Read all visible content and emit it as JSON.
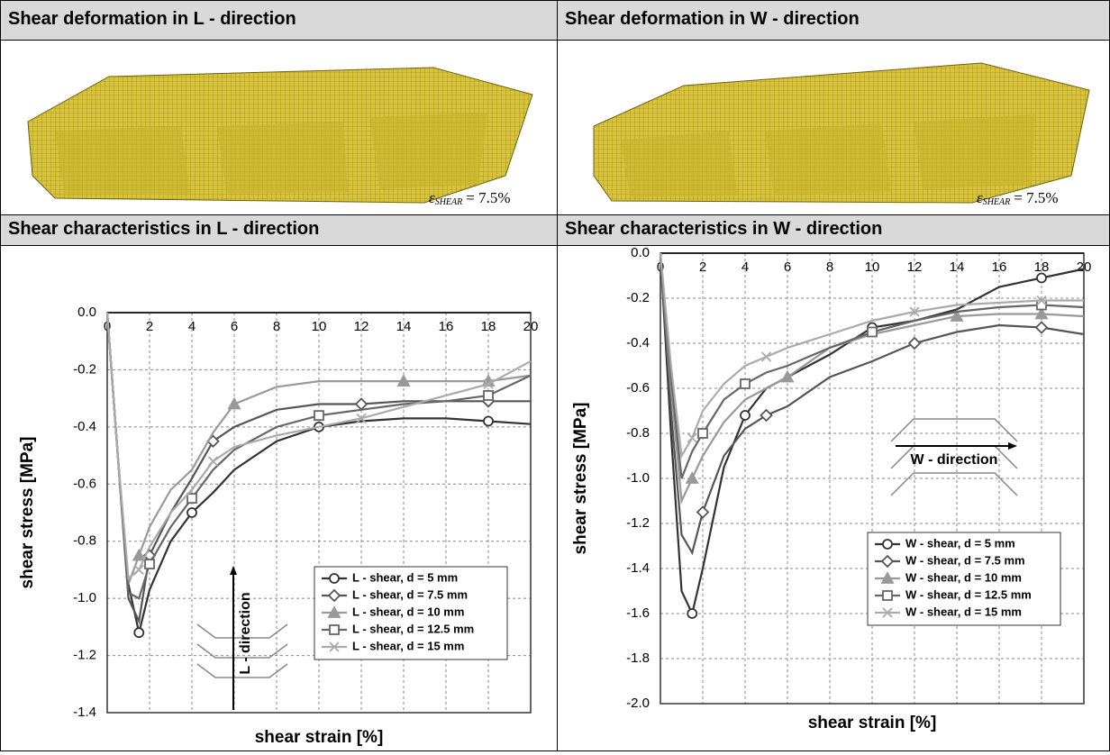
{
  "panels": [
    {
      "title": "Shear deformation in L - direction",
      "strain_label": {
        "symbol": "ε",
        "subscript": "SHEAR",
        "value": "= 7.5%"
      }
    },
    {
      "title": "Shear deformation in W - direction",
      "strain_label": {
        "symbol": "ε",
        "subscript": "SHEAR",
        "value": "= 7.5%"
      }
    },
    {
      "title": "Shear characteristics in L - direction"
    },
    {
      "title": "Shear characteristics in W - direction"
    }
  ],
  "chart_data": [
    {
      "type": "line",
      "x_label": "shear strain [%]",
      "y_label": "shear stress [MPa]",
      "direction_label": "L - direction",
      "x": [
        0,
        0.5,
        1,
        1.5,
        2,
        3,
        4,
        5,
        6,
        8,
        10,
        12,
        14,
        16,
        18,
        20
      ],
      "xlim": [
        0,
        20
      ],
      "xticks": [
        0,
        2,
        4,
        6,
        8,
        10,
        12,
        14,
        16,
        18,
        20
      ],
      "ylim": [
        -1.4,
        0
      ],
      "yticks": [
        {
          "value": 0,
          "label": "0.0"
        },
        -0.2,
        -0.4,
        -0.6,
        -0.8,
        {
          "value": -1,
          "label": "-1.0"
        },
        -1.2,
        -1.4
      ],
      "grid": true,
      "legend": "lower right",
      "series": [
        {
          "name": "L - shear, d = 5 mm",
          "color": "#333333",
          "marker": "circle",
          "values": [
            0,
            -0.5,
            -0.95,
            -1.12,
            -0.97,
            -0.8,
            -0.7,
            -0.63,
            -0.55,
            -0.45,
            -0.4,
            -0.38,
            -0.37,
            -0.37,
            -0.38,
            -0.39
          ]
        },
        {
          "name": "L - shear, d = 7.5 mm",
          "color": "#555555",
          "marker": "diamond",
          "values": [
            0,
            -0.5,
            -1.0,
            -1.08,
            -0.85,
            -0.7,
            -0.58,
            -0.45,
            -0.4,
            -0.34,
            -0.32,
            -0.32,
            -0.31,
            -0.31,
            -0.31,
            -0.31
          ]
        },
        {
          "name": "L - shear, d = 10 mm",
          "color": "#999999",
          "marker": "triangle",
          "values": [
            0,
            -0.5,
            -0.95,
            -0.85,
            -0.75,
            -0.62,
            -0.55,
            -0.42,
            -0.32,
            -0.26,
            -0.24,
            -0.24,
            -0.24,
            -0.24,
            -0.24,
            -0.22
          ]
        },
        {
          "name": "L - shear, d = 12.5 mm",
          "color": "#666666",
          "marker": "square",
          "values": [
            0,
            -0.5,
            -0.98,
            -1.0,
            -0.88,
            -0.75,
            -0.65,
            -0.55,
            -0.48,
            -0.4,
            -0.36,
            -0.34,
            -0.32,
            -0.31,
            -0.29,
            -0.22
          ]
        },
        {
          "name": "L - shear, d = 15 mm",
          "color": "#aaaaaa",
          "marker": "cross",
          "values": [
            0,
            -0.5,
            -0.93,
            -0.9,
            -0.82,
            -0.7,
            -0.62,
            -0.52,
            -0.47,
            -0.43,
            -0.4,
            -0.37,
            -0.33,
            -0.29,
            -0.25,
            -0.17
          ]
        }
      ]
    },
    {
      "type": "line",
      "x_label": "shear strain [%]",
      "y_label": "shear stress [MPa]",
      "direction_label": "W - direction",
      "x": [
        0,
        0.5,
        1,
        1.5,
        2,
        3,
        4,
        5,
        6,
        8,
        10,
        12,
        14,
        16,
        18,
        20
      ],
      "xlim": [
        0,
        20
      ],
      "xticks": [
        0,
        2,
        4,
        6,
        8,
        10,
        12,
        14,
        16,
        18,
        20
      ],
      "ylim": [
        -2,
        0
      ],
      "yticks": [
        {
          "value": 0,
          "label": "0.0"
        },
        -0.2,
        -0.4,
        -0.6,
        -0.8,
        {
          "value": -1,
          "label": "-1.0"
        },
        -1.2,
        -1.4,
        -1.6,
        -1.8,
        {
          "value": -2,
          "label": "-2.0"
        }
      ],
      "grid": true,
      "legend": "lower right",
      "series": [
        {
          "name": "W - shear, d = 5 mm",
          "color": "#333333",
          "marker": "circle",
          "values": [
            0,
            -0.8,
            -1.5,
            -1.6,
            -1.4,
            -0.95,
            -0.72,
            -0.6,
            -0.55,
            -0.45,
            -0.33,
            -0.3,
            -0.25,
            -0.15,
            -0.11,
            -0.07
          ]
        },
        {
          "name": "W - shear, d = 7.5 mm",
          "color": "#555555",
          "marker": "diamond",
          "values": [
            0,
            -0.7,
            -1.25,
            -1.33,
            -1.15,
            -0.9,
            -0.78,
            -0.72,
            -0.68,
            -0.55,
            -0.48,
            -0.4,
            -0.35,
            -0.32,
            -0.33,
            -0.36
          ]
        },
        {
          "name": "W - shear, d = 10 mm",
          "color": "#999999",
          "marker": "triangle",
          "values": [
            0,
            -0.6,
            -1.1,
            -1.0,
            -0.9,
            -0.75,
            -0.65,
            -0.6,
            -0.55,
            -0.42,
            -0.36,
            -0.32,
            -0.28,
            -0.27,
            -0.27,
            -0.28
          ]
        },
        {
          "name": "W - shear, d = 12.5 mm",
          "color": "#666666",
          "marker": "square",
          "values": [
            0,
            -0.55,
            -1.0,
            -0.88,
            -0.8,
            -0.65,
            -0.58,
            -0.53,
            -0.5,
            -0.42,
            -0.35,
            -0.3,
            -0.26,
            -0.24,
            -0.23,
            -0.24
          ]
        },
        {
          "name": "W - shear, d = 15 mm",
          "color": "#aaaaaa",
          "marker": "cross",
          "values": [
            0,
            -0.5,
            -0.9,
            -0.82,
            -0.7,
            -0.58,
            -0.5,
            -0.46,
            -0.42,
            -0.36,
            -0.3,
            -0.26,
            -0.23,
            -0.22,
            -0.21,
            -0.21
          ]
        }
      ]
    }
  ]
}
